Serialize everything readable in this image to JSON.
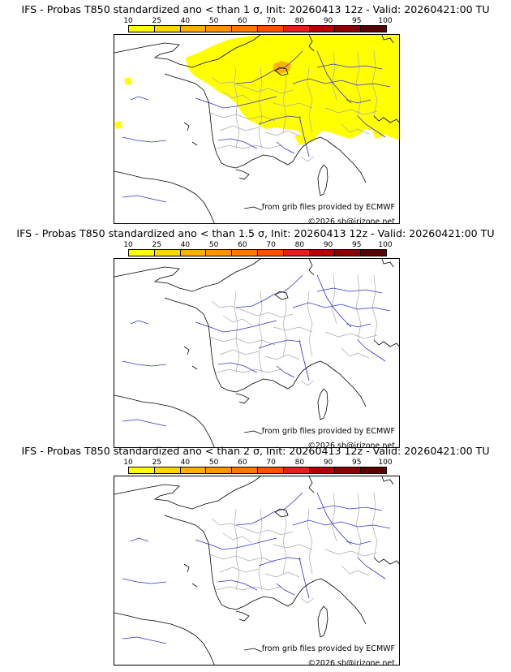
{
  "colorbar": {
    "ticks": [
      "10",
      "25",
      "40",
      "50",
      "60",
      "70",
      "80",
      "90",
      "95",
      "100"
    ],
    "colors": [
      "#ffff00",
      "#ffd700",
      "#ffb000",
      "#ff9500",
      "#ff7800",
      "#ff5000",
      "#e61e1e",
      "#b40000",
      "#8c0000",
      "#5a0000"
    ]
  },
  "panels": [
    {
      "title": "IFS - Probas T850  standardized ano < than 1 σ, Init: 20260413 12z - Valid: 20260421:00 TU",
      "provider": "from grib files provided by ECMWF",
      "copyright": "©2026 sb@irizone.net"
    },
    {
      "title": "IFS - Probas T850  standardized ano < than 1.5 σ, Init: 20260413 12z - Valid: 20260421:00 TU",
      "provider": "from grib files provided by ECMWF",
      "copyright": "©2026 sb@irizone.net"
    },
    {
      "title": "IFS - Probas T850  standardized ano < than 2 σ, Init: 20260413 12z - Valid: 20260421:00 TU",
      "provider": "from grib files provided by ECMWF",
      "copyright": "©2026 sb@irizone.net"
    }
  ],
  "map_colors": {
    "coast": "#000000",
    "rivers": "#3333cc",
    "borders": "#aaaaaa",
    "prob_low": "#ffff00",
    "prob_mid": "#ffa500"
  }
}
